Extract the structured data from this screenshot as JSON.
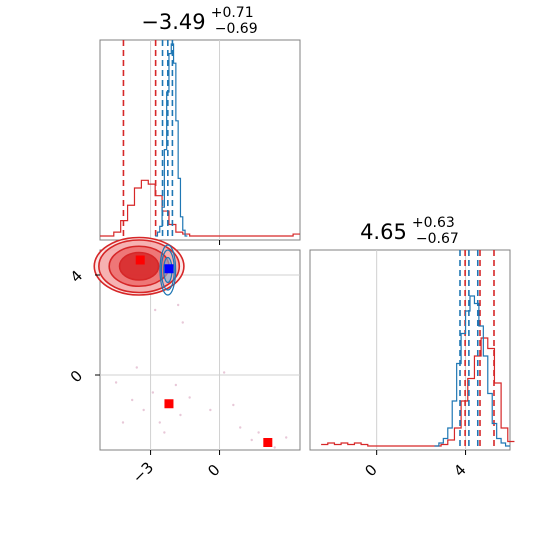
{
  "chart_data": [
    {
      "type": "histogram",
      "panel": "top-left",
      "title_main": "−3.49",
      "title_sup": "+0.71",
      "title_sub": "−0.69",
      "xlim": [
        -5.2,
        3.5
      ],
      "grid": true,
      "series": [
        {
          "name": "",
          "color": "#d62728",
          "x": [
            -5.2,
            -4.9,
            -4.6,
            -4.3,
            -4.0,
            -3.7,
            -3.4,
            -3.1,
            -2.8,
            -2.5,
            -2.2,
            -1.9,
            -1.6,
            -1.3,
            -1.0,
            -0.7,
            -0.4,
            -0.1,
            0.2,
            0.5,
            0.8,
            1.1,
            1.4,
            1.7,
            2.0,
            2.3,
            2.6,
            2.9,
            3.2
          ],
          "y": [
            0,
            0,
            0.02,
            0.08,
            0.16,
            0.25,
            0.29,
            0.27,
            0.21,
            0.13,
            0.06,
            0.02,
            0.01,
            0,
            0,
            0,
            0,
            0,
            0,
            0,
            0,
            0,
            0,
            0,
            0,
            0,
            0,
            0,
            0.01
          ],
          "quantiles": [
            -4.18,
            -2.78
          ]
        },
        {
          "name": "",
          "color": "#1f77b4",
          "x": [
            -2.8,
            -2.7,
            -2.6,
            -2.5,
            -2.4,
            -2.3,
            -2.2,
            -2.1,
            -2.0,
            -1.9,
            -1.8,
            -1.7,
            -1.6,
            -1.5
          ],
          "y": [
            0,
            0.02,
            0.05,
            0.15,
            0.45,
            0.75,
            0.95,
            1.0,
            0.9,
            0.6,
            0.3,
            0.1,
            0.03,
            0
          ],
          "quantiles": [
            -2.48,
            -2.25,
            -2.05
          ]
        }
      ]
    },
    {
      "type": "contour",
      "panel": "bottom-left",
      "xlim": [
        -5.2,
        3.5
      ],
      "ylim": [
        -3.0,
        5.0
      ],
      "xticks": [
        -3,
        0
      ],
      "yticks": [
        0,
        4
      ],
      "xtick_labels": [
        "−3",
        "0"
      ],
      "ytick_labels": [
        "0",
        "4"
      ],
      "grid": true,
      "red_contour": {
        "color": "#d62728",
        "center": [
          -3.5,
          4.35
        ],
        "radii_levels": [
          [
            0.85,
            0.55
          ],
          [
            1.3,
            0.8
          ],
          [
            1.75,
            1.05
          ],
          [
            1.95,
            1.15
          ]
        ]
      },
      "blue_contour": {
        "color": "#1f77b4",
        "center": [
          -2.25,
          4.2
        ],
        "radii_levels": [
          [
            0.18,
            0.5
          ],
          [
            0.28,
            0.8
          ],
          [
            0.34,
            1.0
          ]
        ]
      },
      "markers": [
        {
          "color": "#ff0000",
          "x": -3.45,
          "y": 4.6
        },
        {
          "color": "#ff0000",
          "x": -2.2,
          "y": -1.15
        },
        {
          "color": "#ff0000",
          "x": 2.1,
          "y": -2.7
        },
        {
          "color": "#0000ff",
          "x": -2.2,
          "y": 4.25
        }
      ],
      "scatter_points": [
        [
          -4.5,
          -0.3
        ],
        [
          -3.8,
          -1.0
        ],
        [
          -2.9,
          -0.7
        ],
        [
          -1.9,
          -0.4
        ],
        [
          -1.7,
          -1.6
        ],
        [
          -2.6,
          -1.9
        ],
        [
          -4.2,
          -1.9
        ],
        [
          -0.4,
          -1.4
        ],
        [
          0.2,
          0.1
        ],
        [
          0.9,
          -2.1
        ],
        [
          1.4,
          -2.6
        ],
        [
          1.7,
          -2.3
        ],
        [
          2.4,
          -2.9
        ],
        [
          2.9,
          -2.5
        ],
        [
          -3.3,
          -1.4
        ],
        [
          -2.4,
          -2.3
        ],
        [
          -1.3,
          -0.9
        ],
        [
          -3.6,
          0.3
        ],
        [
          -1.6,
          2.1
        ],
        [
          -1.8,
          2.8
        ],
        [
          -2.8,
          2.6
        ],
        [
          0.6,
          -1.2
        ]
      ]
    },
    {
      "type": "histogram",
      "panel": "bottom-right",
      "title_main": "4.65",
      "title_sup": "+0.63",
      "title_sub": "−0.67",
      "xlim": [
        -3.0,
        6.0
      ],
      "xticks": [
        0,
        4
      ],
      "xtick_labels": [
        "0",
        "4"
      ],
      "grid": true,
      "series": [
        {
          "name": "",
          "color": "#d62728",
          "x": [
            -2.5,
            -2.2,
            -1.9,
            -1.6,
            -1.3,
            -1.0,
            -0.7,
            -0.4,
            -0.1,
            0.2,
            0.5,
            0.8,
            1.1,
            1.4,
            1.7,
            2.0,
            2.3,
            2.6,
            2.9,
            3.2,
            3.5,
            3.8,
            4.1,
            4.4,
            4.7,
            5.0,
            5.3,
            5.6,
            5.9
          ],
          "y": [
            0.01,
            0.02,
            0.01,
            0.02,
            0.01,
            0.02,
            0.01,
            0,
            0,
            0,
            0,
            0,
            0,
            0,
            0,
            0,
            0,
            0,
            0.01,
            0.04,
            0.12,
            0.3,
            0.45,
            0.6,
            0.72,
            0.65,
            0.42,
            0.12,
            0.03
          ],
          "quantiles": [
            3.98,
            4.65,
            5.28
          ]
        },
        {
          "name": "",
          "color": "#1f77b4",
          "x": [
            2.6,
            2.8,
            3.0,
            3.2,
            3.4,
            3.6,
            3.8,
            4.0,
            4.2,
            4.4,
            4.6,
            4.8,
            5.0,
            5.2,
            5.4,
            5.6,
            5.8
          ],
          "y": [
            0,
            0.02,
            0.05,
            0.12,
            0.3,
            0.55,
            0.75,
            0.9,
            1.0,
            0.95,
            0.8,
            0.6,
            0.35,
            0.15,
            0.05,
            0.02,
            0
          ],
          "quantiles": [
            3.75,
            4.15,
            4.55
          ]
        }
      ]
    }
  ]
}
